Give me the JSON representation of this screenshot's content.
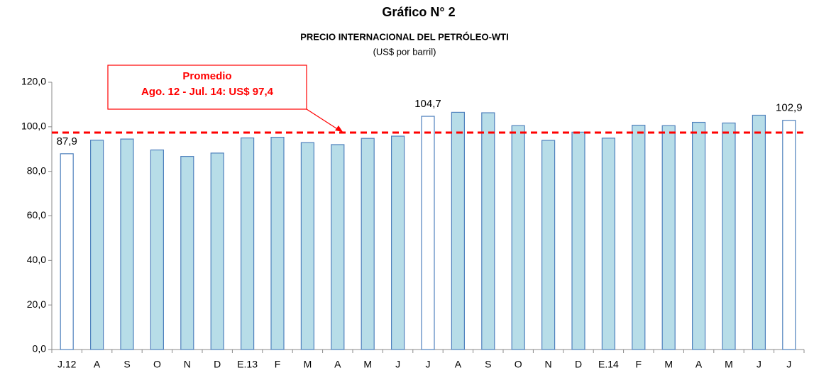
{
  "chart_data": {
    "type": "bar",
    "title": "Gráfico N° 2",
    "subtitle": "PRECIO INTERNACIONAL  DEL PETRÓLEO-WTI",
    "units": "(US$ por barril)",
    "categories": [
      "J.12",
      "A",
      "S",
      "O",
      "N",
      "D",
      "E.13",
      "F",
      "M",
      "A",
      "M",
      "J",
      "J",
      "A",
      "S",
      "O",
      "N",
      "D",
      "E.14",
      "F",
      "M",
      "A",
      "M",
      "J",
      "J"
    ],
    "values": [
      87.9,
      94.0,
      94.5,
      89.6,
      86.7,
      88.2,
      95.0,
      95.3,
      92.9,
      92.0,
      94.8,
      95.8,
      104.7,
      106.5,
      106.3,
      100.5,
      93.9,
      97.6,
      94.9,
      100.7,
      100.5,
      102.0,
      101.7,
      105.2,
      102.9
    ],
    "value_labels": [
      "87,9",
      null,
      null,
      null,
      null,
      null,
      null,
      null,
      null,
      null,
      null,
      null,
      "104,7",
      null,
      null,
      null,
      null,
      null,
      null,
      null,
      null,
      null,
      null,
      null,
      "102,9"
    ],
    "bar_colors": [
      "#ffffff",
      "#b7dde8",
      "#b7dde8",
      "#b7dde8",
      "#b7dde8",
      "#b7dde8",
      "#b7dde8",
      "#b7dde8",
      "#b7dde8",
      "#b7dde8",
      "#b7dde8",
      "#b7dde8",
      "#ffffff",
      "#b7dde8",
      "#b7dde8",
      "#b7dde8",
      "#b7dde8",
      "#b7dde8",
      "#b7dde8",
      "#b7dde8",
      "#b7dde8",
      "#b7dde8",
      "#b7dde8",
      "#b7dde8",
      "#ffffff"
    ],
    "edge_color": "#4f81bd",
    "ylim": [
      0,
      120
    ],
    "yticks": [
      {
        "value": 0,
        "label": "0,0"
      },
      {
        "value": 20,
        "label": "20,0"
      },
      {
        "value": 40,
        "label": "40,0"
      },
      {
        "value": 60,
        "label": "60,0"
      },
      {
        "value": 80,
        "label": "80,0"
      },
      {
        "value": 100,
        "label": "100,0"
      },
      {
        "value": 120,
        "label": "120,0"
      }
    ],
    "average": {
      "value": 97.4,
      "color": "#ff0000",
      "lines": [
        "Promedio",
        "Ago. 12 - Jul. 14: US$ 97,4"
      ]
    }
  }
}
